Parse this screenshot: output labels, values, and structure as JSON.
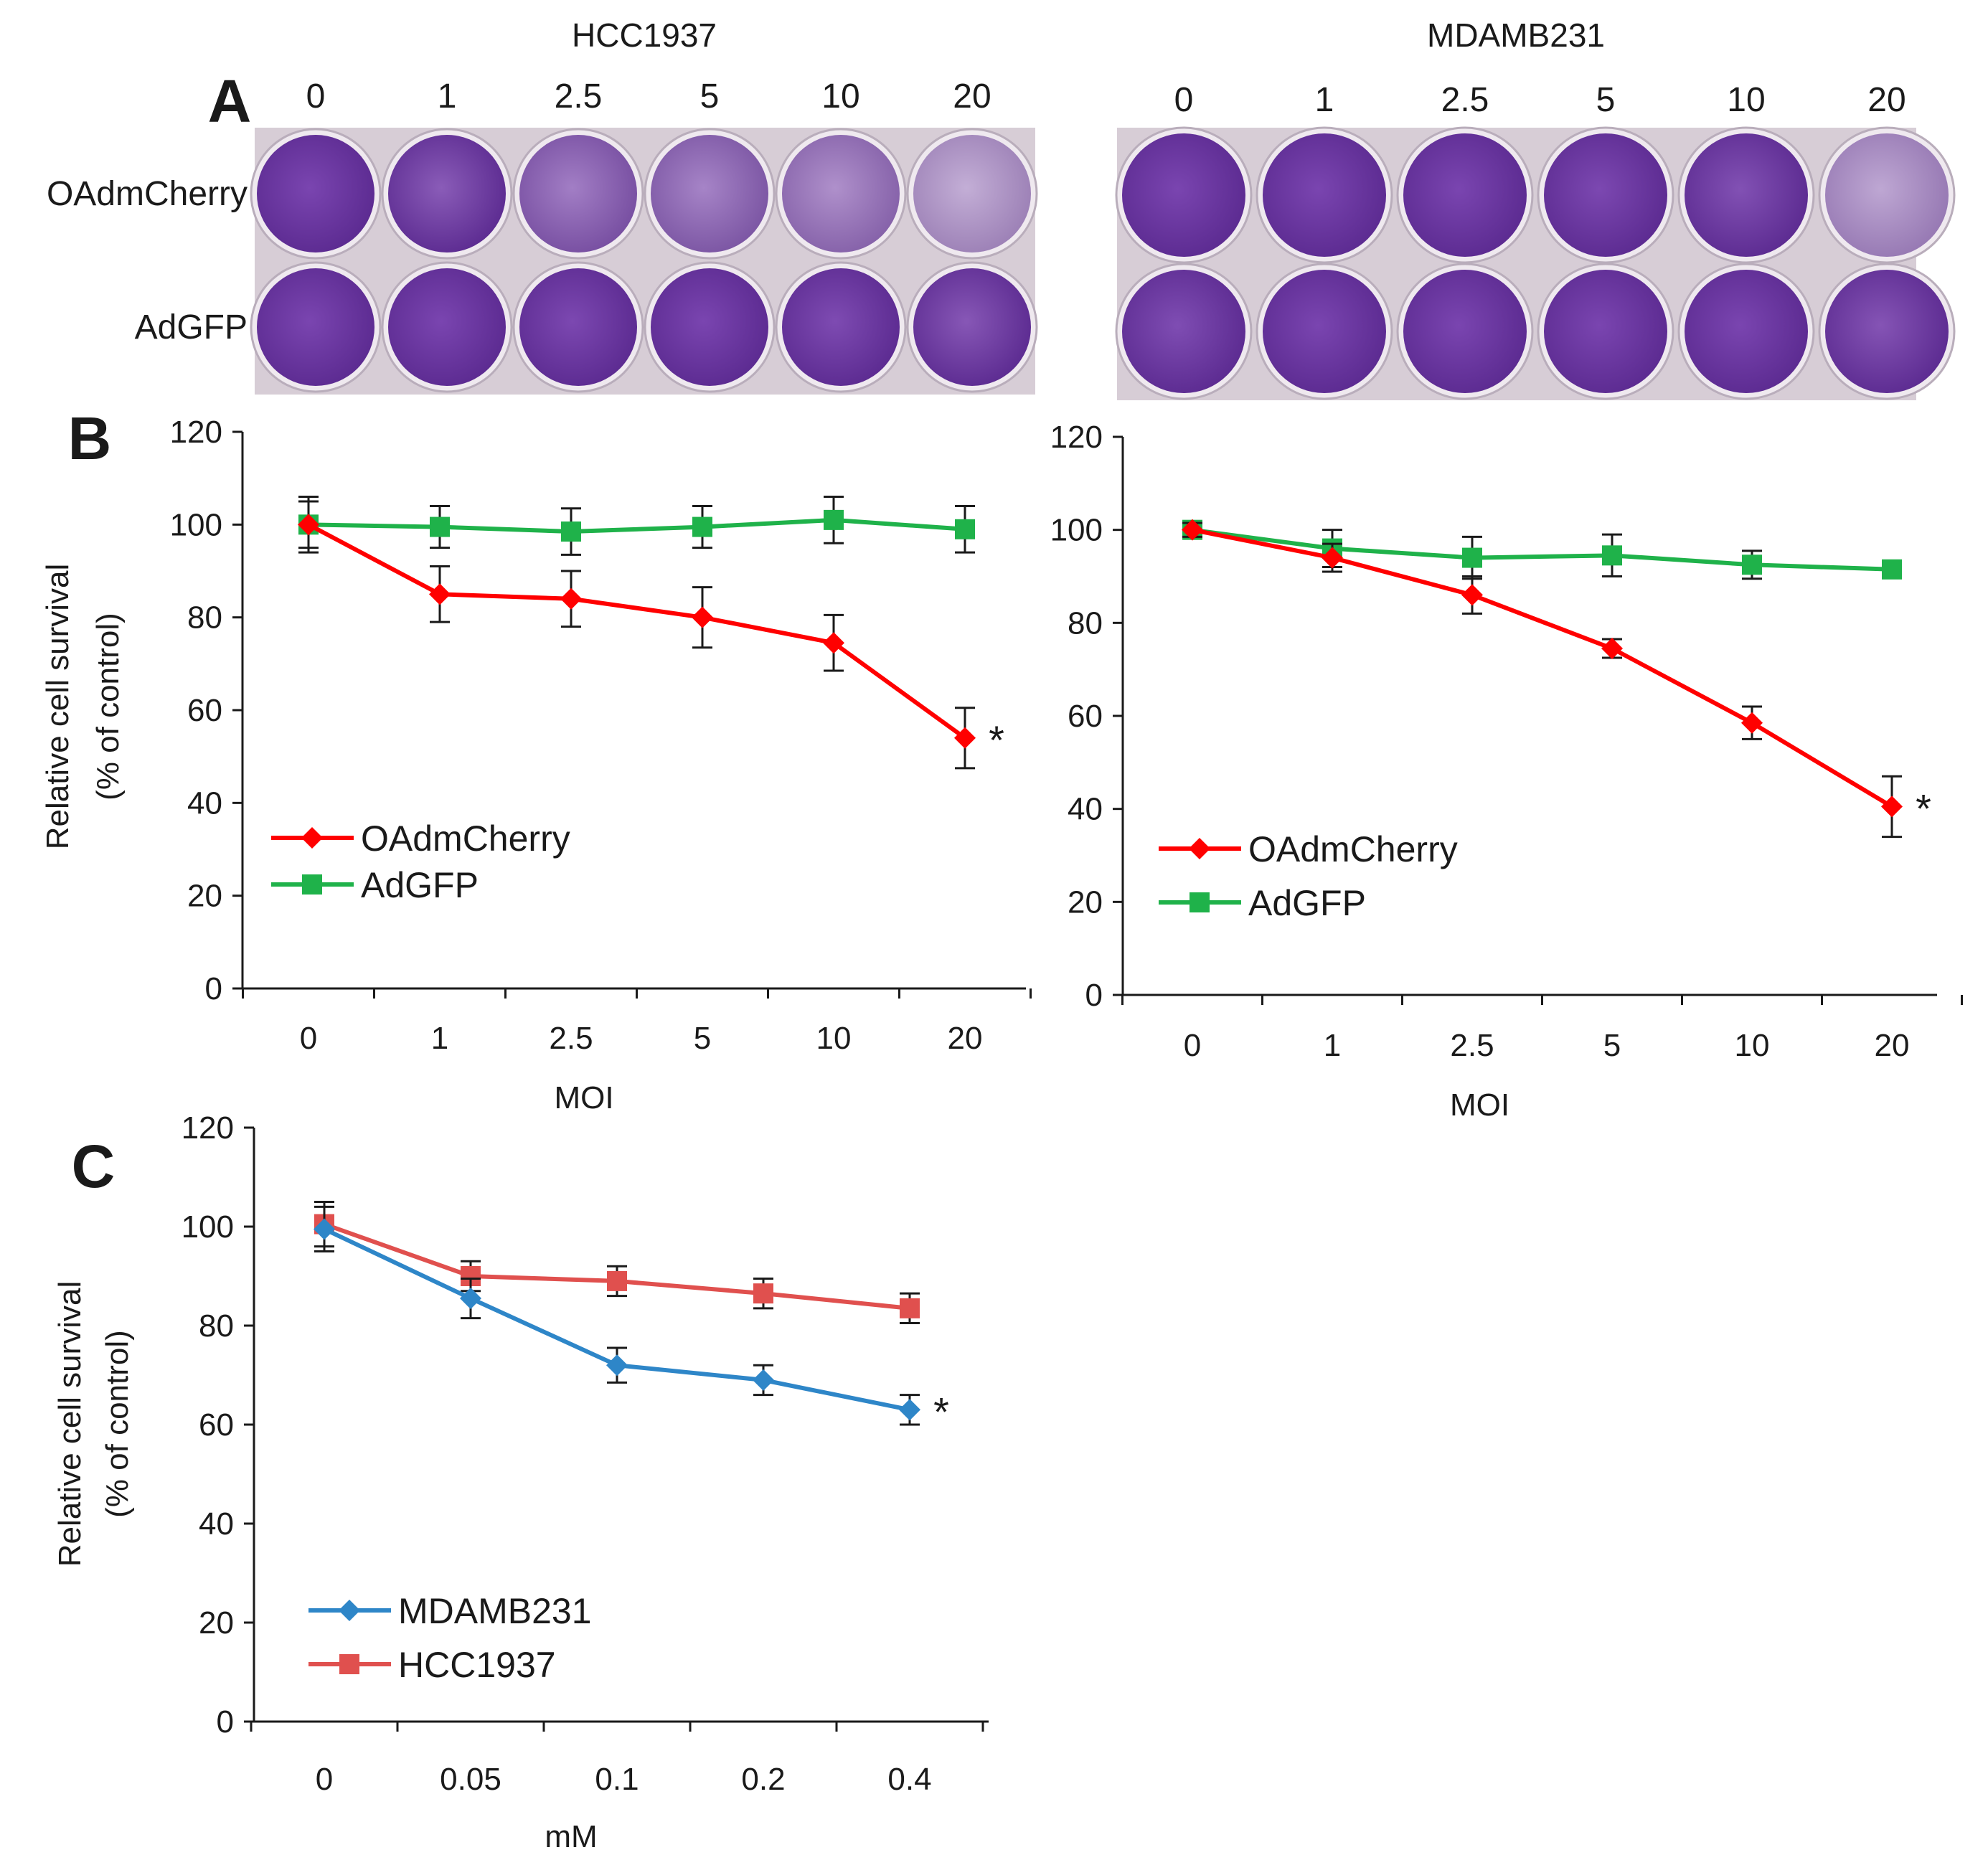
{
  "colors": {
    "oadmcherry": "#ff0000",
    "adgfp": "#1fb24a",
    "mdamb231": "#2e86c8",
    "hcc1937": "#e0504e",
    "plate_bg": "#d7cdd6",
    "well_stain": "#5b2a90"
  },
  "panel_a": {
    "letter": "A",
    "plates": [
      {
        "title": "HCC1937",
        "moi_labels": [
          "0",
          "1",
          "2.5",
          "5",
          "10",
          "20"
        ],
        "rows": [
          {
            "label": "OAdmCherry",
            "stain": [
              1.0,
              0.85,
              0.62,
              0.58,
              0.5,
              0.3
            ]
          },
          {
            "label": "AdGFP",
            "stain": [
              1.0,
              1.0,
              0.98,
              1.0,
              0.96,
              0.88
            ]
          }
        ]
      },
      {
        "title": "MDAMB231",
        "moi_labels": [
          "0",
          "1",
          "2.5",
          "5",
          "10",
          "20"
        ],
        "rows": [
          {
            "label": "",
            "stain": [
              1.0,
              1.0,
              1.0,
              0.98,
              0.92,
              0.35
            ]
          },
          {
            "label": "",
            "stain": [
              0.95,
              1.0,
              1.0,
              1.0,
              1.0,
              0.9
            ]
          }
        ]
      }
    ]
  },
  "chart_data": [
    {
      "id": "B-HCC1937",
      "panel_letter": "B",
      "type": "line",
      "categories": [
        "0",
        "1",
        "2.5",
        "5",
        "10",
        "20"
      ],
      "series": [
        {
          "name": "OAdmCherry",
          "marker": "diamond",
          "color": "#ff0000",
          "values": [
            100,
            85,
            84,
            80,
            74.5,
            54
          ],
          "errors": [
            6,
            6,
            6,
            6.5,
            6,
            6.5
          ]
        },
        {
          "name": "AdGFP",
          "marker": "square",
          "color": "#1fb24a",
          "values": [
            100,
            99.5,
            98.5,
            99.5,
            101,
            99
          ],
          "errors": [
            5,
            4.5,
            5,
            4.5,
            5,
            5
          ]
        }
      ],
      "significance": {
        "series": 0,
        "index": 5,
        "mark": "*"
      },
      "ylim": [
        0,
        120
      ],
      "yticks": [
        0,
        20,
        40,
        60,
        80,
        100,
        120
      ],
      "ylabel": "Relative  cell survival",
      "ylabel2": "(% of control)",
      "xlabel": "MOI",
      "legend": "lower-left"
    },
    {
      "id": "B-MDAMB231",
      "type": "line",
      "categories": [
        "0",
        "1",
        "2.5",
        "5",
        "10",
        "20"
      ],
      "series": [
        {
          "name": "OAdmCherry",
          "marker": "diamond",
          "color": "#ff0000",
          "values": [
            100,
            94,
            86,
            74.5,
            58.5,
            40.5
          ],
          "errors": [
            1.5,
            3,
            4,
            2,
            3.5,
            6.5
          ]
        },
        {
          "name": "AdGFP",
          "marker": "square",
          "color": "#1fb24a",
          "values": [
            100,
            96,
            94,
            94.5,
            92.5,
            91.5
          ],
          "errors": [
            1.5,
            4,
            4.5,
            4.5,
            3,
            1.5
          ]
        }
      ],
      "significance": {
        "series": 0,
        "index": 5,
        "mark": "*"
      },
      "ylim": [
        0,
        120
      ],
      "yticks": [
        0,
        20,
        40,
        60,
        80,
        100,
        120
      ],
      "ylabel": "",
      "ylabel2": "",
      "xlabel": "MOI",
      "legend": "lower-left"
    },
    {
      "id": "C",
      "panel_letter": "C",
      "type": "line",
      "categories": [
        "0",
        "0.05",
        "0.1",
        "0.2",
        "0.4"
      ],
      "series": [
        {
          "name": "MDAMB231",
          "marker": "diamond",
          "color": "#2e86c8",
          "values": [
            99.5,
            85.5,
            72,
            69,
            63
          ],
          "errors": [
            4.5,
            4,
            3.5,
            3,
            3
          ]
        },
        {
          "name": "HCC1937",
          "marker": "square",
          "color": "#e0504e",
          "values": [
            100.5,
            90,
            89,
            86.5,
            83.5
          ],
          "errors": [
            4.5,
            3,
            3,
            3,
            3
          ]
        }
      ],
      "significance": {
        "series": 0,
        "index": 4,
        "mark": "*"
      },
      "ylim": [
        0,
        120
      ],
      "yticks": [
        0,
        20,
        40,
        60,
        80,
        100,
        120
      ],
      "ylabel": "Relative  cell survival",
      "ylabel2": "(% of control)",
      "xlabel": "mM",
      "legend": "lower-left"
    }
  ]
}
